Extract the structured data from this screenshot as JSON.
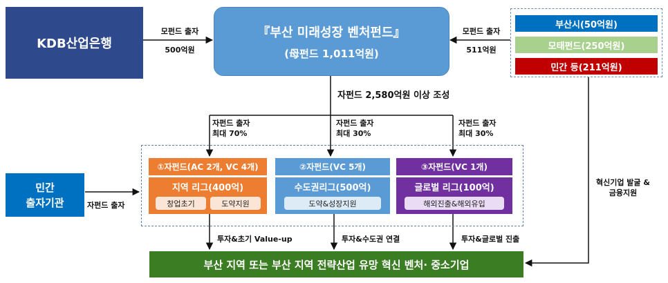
{
  "kdb": {
    "name": "KDB산업은행",
    "fund_label": "모펀드 출자",
    "amount": "500억원"
  },
  "mother_fund": {
    "title": "『부산 미래성장 벤처펀드』",
    "subtitle": "(母펀드 1,011억원)"
  },
  "right_investors": {
    "fund_label": "모펀드 출자",
    "amount": "511억원",
    "items": [
      "부산시(50억원)",
      "모태펀드(250억원)",
      "민간 등(211억원)"
    ]
  },
  "child_fund_note": "자펀드 2,580억원 이상 조성",
  "child_contributions": [
    {
      "label": "자펀드 출자",
      "max": "최대 70%"
    },
    {
      "label": "자펀드 출자",
      "max": "최대 30%"
    },
    {
      "label": "자펀드 출자",
      "max": "최대 30%"
    }
  ],
  "private_investor": {
    "name_line1": "민간",
    "name_line2": "출자기관",
    "label": "자펀드 출자"
  },
  "funds": [
    {
      "header": "①자펀드(AC 2개, VC 4개)",
      "league": "지역 리그(400억)",
      "tags": [
        "창업초기",
        "도약지원"
      ],
      "outcome": "투자&초기 Value-up"
    },
    {
      "header": "②자펀드(VC 5개)",
      "league": "수도권리그(500억)",
      "tags": [
        "도약&성장지원"
      ],
      "outcome": "투자&수도권 연결"
    },
    {
      "header": "③자펀드(VC 1개)",
      "league": "글로벌 리그(100억)",
      "tags": [
        "해외진출&해외유입"
      ],
      "outcome": "투자&글로벌 진출"
    }
  ],
  "support": {
    "line1": "혁신기업 발굴 &",
    "line2": "금융지원"
  },
  "target": "부산 지역 또는 부산 지역 전략산업 유망 혁신 벤처· 중소기업",
  "colors": {
    "navy": "#2E4A8C",
    "sky": "#5B9BD5",
    "blue": "#0070C0",
    "green_light": "#A9D18E",
    "red": "#C00000",
    "orange": "#ED7D31",
    "purple": "#7030A0",
    "green_dark": "#3B7D23"
  }
}
